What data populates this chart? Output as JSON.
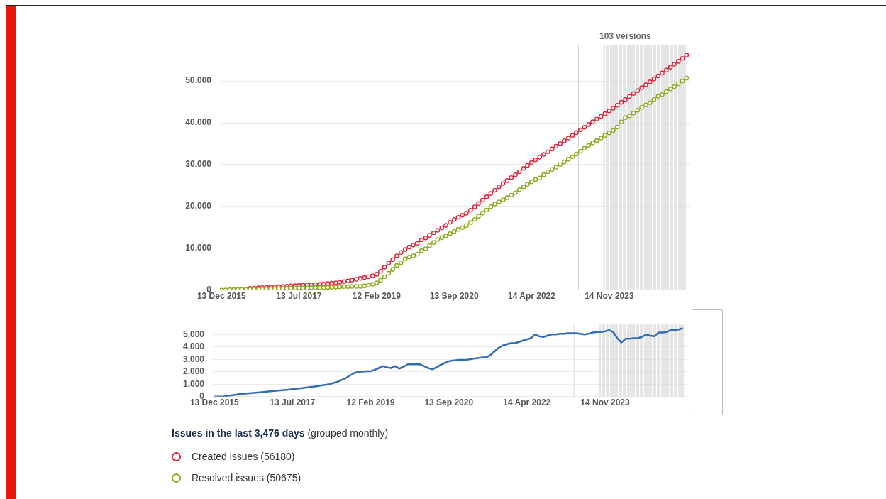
{
  "chart_data": [
    {
      "type": "line",
      "title": "Issues in the last 3,476 days",
      "subtitle": "(grouped monthly)",
      "x": [
        "2015-12-13",
        "2016-01-13",
        "2016-02-13",
        "2016-03-13",
        "2016-04-13",
        "2016-05-13",
        "2016-06-13",
        "2016-07-13",
        "2016-08-13",
        "2016-09-13",
        "2016-10-13",
        "2016-11-13",
        "2016-12-13",
        "2017-01-13",
        "2017-02-13",
        "2017-03-13",
        "2017-04-13",
        "2017-05-13",
        "2017-06-13",
        "2017-07-13",
        "2017-08-13",
        "2017-09-13",
        "2017-10-13",
        "2017-11-13",
        "2017-12-13",
        "2018-01-13",
        "2018-02-13",
        "2018-03-13",
        "2018-04-13",
        "2018-05-13",
        "2018-06-13",
        "2018-07-13",
        "2018-08-13",
        "2018-09-13",
        "2018-10-13",
        "2018-11-13",
        "2018-12-13",
        "2019-01-13",
        "2019-02-13",
        "2019-03-13",
        "2019-04-13",
        "2019-05-13",
        "2019-06-13",
        "2019-07-13",
        "2019-08-13",
        "2019-09-13",
        "2019-10-13",
        "2019-11-13",
        "2019-12-13",
        "2020-01-13",
        "2020-02-13",
        "2020-03-13",
        "2020-04-13",
        "2020-05-13",
        "2020-06-13",
        "2020-07-13",
        "2020-08-13",
        "2020-09-13",
        "2020-10-13",
        "2020-11-13",
        "2020-12-13",
        "2021-01-13",
        "2021-02-13",
        "2021-03-13",
        "2021-04-13",
        "2021-05-13",
        "2021-06-13",
        "2021-07-13",
        "2021-08-13",
        "2021-09-13",
        "2021-10-13",
        "2021-11-13",
        "2021-12-13",
        "2022-01-13",
        "2022-02-13",
        "2022-03-13",
        "2022-04-13",
        "2022-05-13",
        "2022-06-13",
        "2022-07-13",
        "2022-08-13",
        "2022-09-13",
        "2022-10-13",
        "2022-11-13",
        "2022-12-13",
        "2023-01-13",
        "2023-02-13",
        "2023-03-13",
        "2023-04-13",
        "2023-05-13",
        "2023-06-13",
        "2023-07-13",
        "2023-08-13",
        "2023-09-13",
        "2023-10-13",
        "2023-11-13",
        "2023-12-13",
        "2024-01-13",
        "2024-02-13",
        "2024-03-13",
        "2024-04-13",
        "2024-05-13",
        "2024-06-13",
        "2024-07-13",
        "2024-08-13",
        "2024-09-13",
        "2024-10-13",
        "2024-11-13",
        "2024-12-13",
        "2025-01-13",
        "2025-02-13",
        "2025-03-13",
        "2025-04-13",
        "2025-05-13",
        "2025-06-13"
      ],
      "series": [
        {
          "name": "Created issues (56180)",
          "color": "#d9263a",
          "values": [
            null,
            null,
            null,
            null,
            null,
            null,
            null,
            420,
            480,
            540,
            600,
            660,
            720,
            780,
            840,
            900,
            950,
            1000,
            1050,
            1100,
            1150,
            1200,
            1260,
            1320,
            1380,
            1450,
            1550,
            1650,
            1750,
            1900,
            2050,
            2200,
            2400,
            2600,
            2800,
            3000,
            3200,
            3450,
            3800,
            4500,
            5500,
            6500,
            7300,
            8200,
            9000,
            9700,
            10300,
            10800,
            11200,
            12000,
            12500,
            13100,
            13700,
            14300,
            14900,
            15500,
            16200,
            16900,
            17400,
            17900,
            18400,
            19100,
            19900,
            20700,
            21500,
            22300,
            23100,
            23900,
            24700,
            25500,
            26200,
            26900,
            27600,
            28300,
            29100,
            29800,
            30500,
            31150,
            31800,
            32450,
            33100,
            33750,
            34400,
            35050,
            35700,
            36350,
            37000,
            37650,
            38300,
            38950,
            39600,
            40250,
            40900,
            41550,
            42200,
            42850,
            43500,
            44200,
            44900,
            45600,
            46300,
            47000,
            47700,
            48400,
            49100,
            49800,
            50500,
            51200,
            51900,
            52600,
            53300,
            54000,
            54700,
            55400,
            56180
          ]
        },
        {
          "name": "Resolved issues (50675)",
          "color": "#8aab1f",
          "values": [
            0,
            60,
            120,
            130,
            140,
            150,
            160,
            190,
            220,
            250,
            280,
            310,
            340,
            370,
            400,
            430,
            450,
            470,
            490,
            500,
            510,
            520,
            540,
            560,
            580,
            600,
            650,
            700,
            750,
            800,
            850,
            850,
            900,
            900,
            900,
            1000,
            1180,
            1400,
            1750,
            2350,
            3200,
            4050,
            4950,
            5900,
            6550,
            7450,
            7900,
            8200,
            8600,
            9400,
            9900,
            10650,
            11400,
            12100,
            12550,
            12950,
            13500,
            14050,
            14500,
            14950,
            15450,
            16150,
            16900,
            17650,
            18400,
            19150,
            19950,
            20600,
            21100,
            21600,
            22100,
            22700,
            23300,
            24000,
            24700,
            25300,
            25900,
            26450,
            26800,
            27600,
            28300,
            28850,
            29400,
            30050,
            30650,
            31300,
            31900,
            32550,
            33200,
            33900,
            34600,
            35200,
            35750,
            36350,
            37000,
            37600,
            38150,
            39000,
            40200,
            41250,
            41650,
            42350,
            43000,
            43700,
            44300,
            44800,
            45600,
            46350,
            46750,
            47450,
            48100,
            48650,
            49350,
            50000,
            50675
          ]
        }
      ],
      "xlim": [
        "2015-12-01",
        "2025-07-10"
      ],
      "xticks": [
        {
          "value": "2015-12-13",
          "label": "13 Dec 2015"
        },
        {
          "value": "2017-07-13",
          "label": "13 Jul 2017"
        },
        {
          "value": "2019-02-12",
          "label": "12 Feb 2019"
        },
        {
          "value": "2020-09-13",
          "label": "13 Sep 2020"
        },
        {
          "value": "2022-04-14",
          "label": "14 Apr 2022"
        },
        {
          "value": "2023-11-14",
          "label": "14 Nov 2023"
        }
      ],
      "ylim": [
        0,
        58500
      ],
      "yticks": [
        0,
        {
          "value": 10000,
          "label": "10,000"
        },
        {
          "value": 20000,
          "label": "20,000"
        },
        {
          "value": 30000,
          "label": "30,000"
        },
        {
          "value": 40000,
          "label": "40,000"
        },
        {
          "value": 50000,
          "label": "50,000"
        }
      ],
      "ref_lines": [
        {
          "axis": "x",
          "value": "2022-12-03",
          "color": "#cfcfcf"
        },
        {
          "axis": "x",
          "value": "2023-03-29",
          "color": "#cfcfcf"
        }
      ],
      "bands": [
        {
          "axis": "x",
          "from": "2023-10-01",
          "to": "2025-06-20",
          "color": "#d4d4d4"
        }
      ],
      "annotations": [
        "103 versions"
      ],
      "grid": "y",
      "marker": "circle",
      "legend": "bottom"
    },
    {
      "type": "line",
      "x": [
        "2015-12-13",
        "2016-01-13",
        "2016-02-13",
        "2016-03-13",
        "2016-04-13",
        "2016-05-13",
        "2016-06-13",
        "2016-07-13",
        "2016-08-13",
        "2016-09-13",
        "2016-10-13",
        "2016-11-13",
        "2016-12-13",
        "2017-01-13",
        "2017-02-13",
        "2017-03-13",
        "2017-04-13",
        "2017-05-13",
        "2017-06-13",
        "2017-07-13",
        "2017-08-13",
        "2017-09-13",
        "2017-10-13",
        "2017-11-13",
        "2017-12-13",
        "2018-01-13",
        "2018-02-13",
        "2018-03-13",
        "2018-04-13",
        "2018-05-13",
        "2018-06-13",
        "2018-07-13",
        "2018-08-13",
        "2018-09-13",
        "2018-10-13",
        "2018-11-13",
        "2018-12-13",
        "2019-01-13",
        "2019-02-13",
        "2019-03-13",
        "2019-04-13",
        "2019-05-13",
        "2019-06-13",
        "2019-07-13",
        "2019-08-13",
        "2019-09-13",
        "2019-10-13",
        "2019-11-13",
        "2019-12-13",
        "2020-01-13",
        "2020-02-13",
        "2020-03-13",
        "2020-04-13",
        "2020-05-13",
        "2020-06-13",
        "2020-07-13",
        "2020-08-13",
        "2020-09-13",
        "2020-10-13",
        "2020-11-13",
        "2020-12-13",
        "2021-01-13",
        "2021-02-13",
        "2021-03-13",
        "2021-04-13",
        "2021-05-13",
        "2021-06-13",
        "2021-07-13",
        "2021-08-13",
        "2021-09-13",
        "2021-10-13",
        "2021-11-13",
        "2021-12-13",
        "2022-01-13",
        "2022-02-13",
        "2022-03-13",
        "2022-04-13",
        "2022-05-13",
        "2022-06-13",
        "2022-07-13",
        "2022-08-13",
        "2022-09-13",
        "2022-10-13",
        "2022-11-13",
        "2022-12-13",
        "2023-01-13",
        "2023-02-13",
        "2023-03-13",
        "2023-04-13",
        "2023-05-13",
        "2023-06-13",
        "2023-07-13",
        "2023-08-13",
        "2023-09-13",
        "2023-10-13",
        "2023-11-13",
        "2023-12-13",
        "2024-01-13",
        "2024-02-13",
        "2024-03-13",
        "2024-04-13",
        "2024-05-13",
        "2024-06-13",
        "2024-07-13",
        "2024-08-13",
        "2024-09-13",
        "2024-10-13",
        "2024-11-13",
        "2024-12-13",
        "2025-01-13",
        "2025-02-13",
        "2025-03-13",
        "2025-04-13",
        "2025-05-13",
        "2025-06-13"
      ],
      "series": [
        {
          "color": "#2f6db5",
          "values": [
            0,
            0,
            0,
            50,
            100,
            150,
            200,
            230,
            260,
            290,
            320,
            350,
            380,
            410,
            440,
            470,
            500,
            530,
            560,
            600,
            640,
            680,
            720,
            760,
            800,
            850,
            900,
            950,
            1000,
            1100,
            1200,
            1350,
            1500,
            1700,
            1900,
            2000,
            2020,
            2050,
            2050,
            2150,
            2300,
            2450,
            2350,
            2300,
            2450,
            2250,
            2400,
            2600,
            2600,
            2600,
            2600,
            2450,
            2300,
            2200,
            2350,
            2550,
            2700,
            2850,
            2900,
            2950,
            2950,
            2950,
            3000,
            3050,
            3100,
            3150,
            3150,
            3300,
            3600,
            3900,
            4100,
            4200,
            4300,
            4300,
            4400,
            4500,
            4600,
            4700,
            5000,
            4850,
            4800,
            4900,
            5000,
            5000,
            5050,
            5050,
            5100,
            5100,
            5100,
            5050,
            5000,
            5050,
            5150,
            5200,
            5200,
            5250,
            5350,
            5200,
            4700,
            4350,
            4650,
            4650,
            4700,
            4700,
            4800,
            5000,
            4900,
            4850,
            5150,
            5150,
            5200,
            5350,
            5350,
            5400,
            5500
          ]
        }
      ],
      "xlim": [
        "2015-12-01",
        "2025-07-10"
      ],
      "xticks": [
        {
          "value": "2015-12-13",
          "label": "13 Dec 2015"
        },
        {
          "value": "2017-07-13",
          "label": "13 Jul 2017"
        },
        {
          "value": "2019-02-12",
          "label": "12 Feb 2019"
        },
        {
          "value": "2020-09-13",
          "label": "13 Sep 2020"
        },
        {
          "value": "2022-04-14",
          "label": "14 Apr 2022"
        },
        {
          "value": "2023-11-14",
          "label": "14 Nov 2023"
        }
      ],
      "ylim": [
        0,
        5800
      ],
      "yticks": [
        0,
        {
          "value": 1000,
          "label": "1,000"
        },
        {
          "value": 2000,
          "label": "2,000"
        },
        {
          "value": 3000,
          "label": "3,000"
        },
        {
          "value": 4000,
          "label": "4,000"
        },
        {
          "value": 5000,
          "label": "5,000"
        }
      ],
      "ref_lines": [
        {
          "axis": "x",
          "value": "2023-03-29",
          "color": "#dddddd"
        }
      ],
      "bands": [
        {
          "axis": "x",
          "from": "2023-10-01",
          "to": "2025-06-20",
          "color": "#d4d4d4"
        }
      ],
      "grid": "y",
      "marker": "none"
    }
  ]
}
